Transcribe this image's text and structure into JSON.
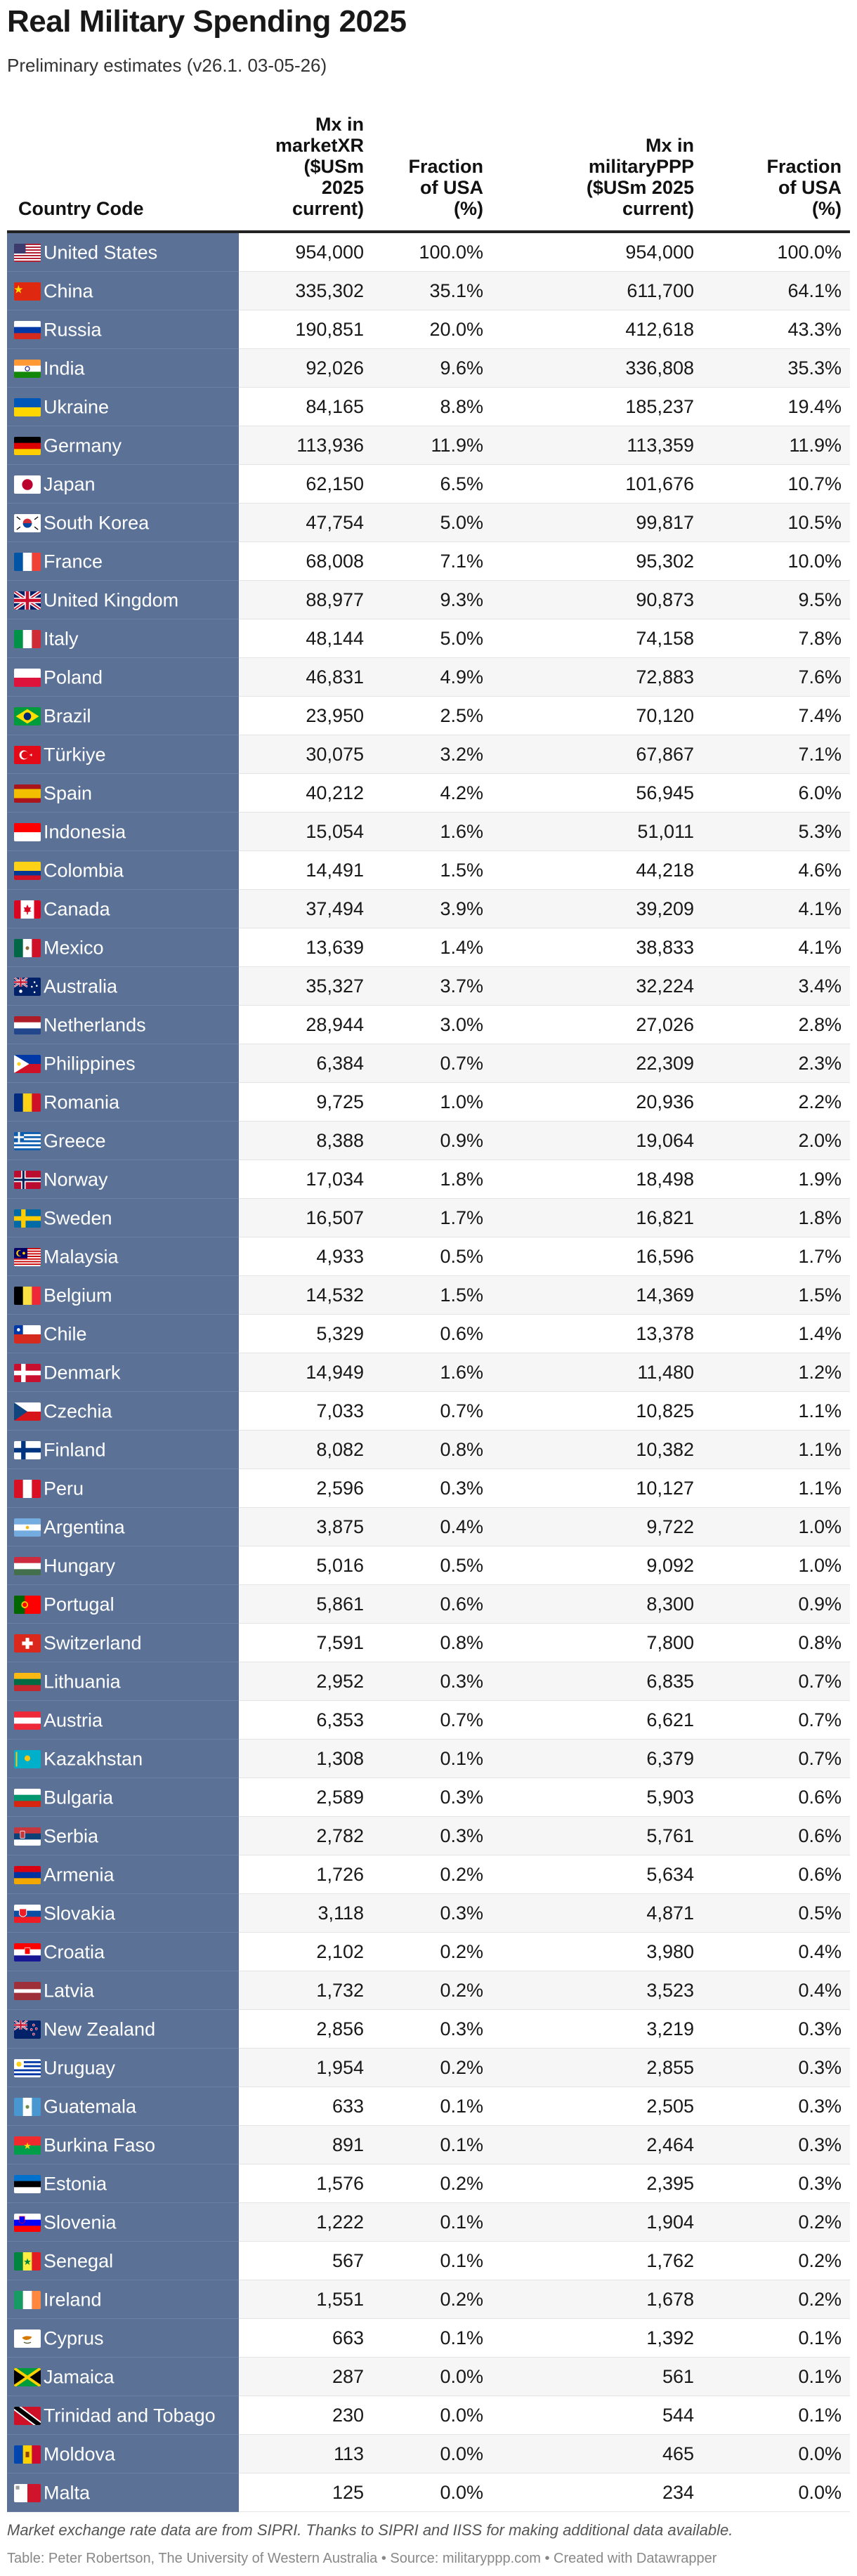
{
  "header": {
    "title": "Real Military Spending 2025",
    "subtitle": "Preliminary estimates (v26.1. 03-05-26)"
  },
  "chart_data": {
    "type": "table",
    "columns": [
      "Country Code",
      "Mx in marketXR ($USm 2025 current)",
      "Fraction of USA (%)",
      "Mx in militaryPPP ($USm 2025 current)",
      "Fraction of USA (%)"
    ],
    "rows": [
      {
        "country": "United States",
        "flag": "us",
        "mx_xr": "954,000",
        "frac_xr": "100.0%",
        "mx_ppp": "954,000",
        "frac_ppp": "100.0%"
      },
      {
        "country": "China",
        "flag": "cn",
        "mx_xr": "335,302",
        "frac_xr": "35.1%",
        "mx_ppp": "611,700",
        "frac_ppp": "64.1%"
      },
      {
        "country": "Russia",
        "flag": "ru",
        "mx_xr": "190,851",
        "frac_xr": "20.0%",
        "mx_ppp": "412,618",
        "frac_ppp": "43.3%"
      },
      {
        "country": "India",
        "flag": "in",
        "mx_xr": "92,026",
        "frac_xr": "9.6%",
        "mx_ppp": "336,808",
        "frac_ppp": "35.3%"
      },
      {
        "country": "Ukraine",
        "flag": "ua",
        "mx_xr": "84,165",
        "frac_xr": "8.8%",
        "mx_ppp": "185,237",
        "frac_ppp": "19.4%"
      },
      {
        "country": "Germany",
        "flag": "de",
        "mx_xr": "113,936",
        "frac_xr": "11.9%",
        "mx_ppp": "113,359",
        "frac_ppp": "11.9%"
      },
      {
        "country": "Japan",
        "flag": "jp",
        "mx_xr": "62,150",
        "frac_xr": "6.5%",
        "mx_ppp": "101,676",
        "frac_ppp": "10.7%"
      },
      {
        "country": "South Korea",
        "flag": "kr",
        "mx_xr": "47,754",
        "frac_xr": "5.0%",
        "mx_ppp": "99,817",
        "frac_ppp": "10.5%"
      },
      {
        "country": "France",
        "flag": "fr",
        "mx_xr": "68,008",
        "frac_xr": "7.1%",
        "mx_ppp": "95,302",
        "frac_ppp": "10.0%"
      },
      {
        "country": "United Kingdom",
        "flag": "gb",
        "mx_xr": "88,977",
        "frac_xr": "9.3%",
        "mx_ppp": "90,873",
        "frac_ppp": "9.5%"
      },
      {
        "country": "Italy",
        "flag": "it",
        "mx_xr": "48,144",
        "frac_xr": "5.0%",
        "mx_ppp": "74,158",
        "frac_ppp": "7.8%"
      },
      {
        "country": "Poland",
        "flag": "pl",
        "mx_xr": "46,831",
        "frac_xr": "4.9%",
        "mx_ppp": "72,883",
        "frac_ppp": "7.6%"
      },
      {
        "country": "Brazil",
        "flag": "br",
        "mx_xr": "23,950",
        "frac_xr": "2.5%",
        "mx_ppp": "70,120",
        "frac_ppp": "7.4%"
      },
      {
        "country": "Türkiye",
        "flag": "tr",
        "mx_xr": "30,075",
        "frac_xr": "3.2%",
        "mx_ppp": "67,867",
        "frac_ppp": "7.1%"
      },
      {
        "country": "Spain",
        "flag": "es",
        "mx_xr": "40,212",
        "frac_xr": "4.2%",
        "mx_ppp": "56,945",
        "frac_ppp": "6.0%"
      },
      {
        "country": "Indonesia",
        "flag": "id",
        "mx_xr": "15,054",
        "frac_xr": "1.6%",
        "mx_ppp": "51,011",
        "frac_ppp": "5.3%"
      },
      {
        "country": "Colombia",
        "flag": "co",
        "mx_xr": "14,491",
        "frac_xr": "1.5%",
        "mx_ppp": "44,218",
        "frac_ppp": "4.6%"
      },
      {
        "country": "Canada",
        "flag": "ca",
        "mx_xr": "37,494",
        "frac_xr": "3.9%",
        "mx_ppp": "39,209",
        "frac_ppp": "4.1%"
      },
      {
        "country": "Mexico",
        "flag": "mx",
        "mx_xr": "13,639",
        "frac_xr": "1.4%",
        "mx_ppp": "38,833",
        "frac_ppp": "4.1%"
      },
      {
        "country": "Australia",
        "flag": "au",
        "mx_xr": "35,327",
        "frac_xr": "3.7%",
        "mx_ppp": "32,224",
        "frac_ppp": "3.4%"
      },
      {
        "country": "Netherlands",
        "flag": "nl",
        "mx_xr": "28,944",
        "frac_xr": "3.0%",
        "mx_ppp": "27,026",
        "frac_ppp": "2.8%"
      },
      {
        "country": "Philippines",
        "flag": "ph",
        "mx_xr": "6,384",
        "frac_xr": "0.7%",
        "mx_ppp": "22,309",
        "frac_ppp": "2.3%"
      },
      {
        "country": "Romania",
        "flag": "ro",
        "mx_xr": "9,725",
        "frac_xr": "1.0%",
        "mx_ppp": "20,936",
        "frac_ppp": "2.2%"
      },
      {
        "country": "Greece",
        "flag": "gr",
        "mx_xr": "8,388",
        "frac_xr": "0.9%",
        "mx_ppp": "19,064",
        "frac_ppp": "2.0%"
      },
      {
        "country": "Norway",
        "flag": "no",
        "mx_xr": "17,034",
        "frac_xr": "1.8%",
        "mx_ppp": "18,498",
        "frac_ppp": "1.9%"
      },
      {
        "country": "Sweden",
        "flag": "se",
        "mx_xr": "16,507",
        "frac_xr": "1.7%",
        "mx_ppp": "16,821",
        "frac_ppp": "1.8%"
      },
      {
        "country": "Malaysia",
        "flag": "my",
        "mx_xr": "4,933",
        "frac_xr": "0.5%",
        "mx_ppp": "16,596",
        "frac_ppp": "1.7%"
      },
      {
        "country": "Belgium",
        "flag": "be",
        "mx_xr": "14,532",
        "frac_xr": "1.5%",
        "mx_ppp": "14,369",
        "frac_ppp": "1.5%"
      },
      {
        "country": "Chile",
        "flag": "cl",
        "mx_xr": "5,329",
        "frac_xr": "0.6%",
        "mx_ppp": "13,378",
        "frac_ppp": "1.4%"
      },
      {
        "country": "Denmark",
        "flag": "dk",
        "mx_xr": "14,949",
        "frac_xr": "1.6%",
        "mx_ppp": "11,480",
        "frac_ppp": "1.2%"
      },
      {
        "country": "Czechia",
        "flag": "cz",
        "mx_xr": "7,033",
        "frac_xr": "0.7%",
        "mx_ppp": "10,825",
        "frac_ppp": "1.1%"
      },
      {
        "country": "Finland",
        "flag": "fi",
        "mx_xr": "8,082",
        "frac_xr": "0.8%",
        "mx_ppp": "10,382",
        "frac_ppp": "1.1%"
      },
      {
        "country": "Peru",
        "flag": "pe",
        "mx_xr": "2,596",
        "frac_xr": "0.3%",
        "mx_ppp": "10,127",
        "frac_ppp": "1.1%"
      },
      {
        "country": "Argentina",
        "flag": "ar",
        "mx_xr": "3,875",
        "frac_xr": "0.4%",
        "mx_ppp": "9,722",
        "frac_ppp": "1.0%"
      },
      {
        "country": "Hungary",
        "flag": "hu",
        "mx_xr": "5,016",
        "frac_xr": "0.5%",
        "mx_ppp": "9,092",
        "frac_ppp": "1.0%"
      },
      {
        "country": "Portugal",
        "flag": "pt",
        "mx_xr": "5,861",
        "frac_xr": "0.6%",
        "mx_ppp": "8,300",
        "frac_ppp": "0.9%"
      },
      {
        "country": "Switzerland",
        "flag": "ch",
        "mx_xr": "7,591",
        "frac_xr": "0.8%",
        "mx_ppp": "7,800",
        "frac_ppp": "0.8%"
      },
      {
        "country": "Lithuania",
        "flag": "lt",
        "mx_xr": "2,952",
        "frac_xr": "0.3%",
        "mx_ppp": "6,835",
        "frac_ppp": "0.7%"
      },
      {
        "country": "Austria",
        "flag": "at",
        "mx_xr": "6,353",
        "frac_xr": "0.7%",
        "mx_ppp": "6,621",
        "frac_ppp": "0.7%"
      },
      {
        "country": "Kazakhstan",
        "flag": "kz",
        "mx_xr": "1,308",
        "frac_xr": "0.1%",
        "mx_ppp": "6,379",
        "frac_ppp": "0.7%"
      },
      {
        "country": "Bulgaria",
        "flag": "bg",
        "mx_xr": "2,589",
        "frac_xr": "0.3%",
        "mx_ppp": "5,903",
        "frac_ppp": "0.6%"
      },
      {
        "country": "Serbia",
        "flag": "rs",
        "mx_xr": "2,782",
        "frac_xr": "0.3%",
        "mx_ppp": "5,761",
        "frac_ppp": "0.6%"
      },
      {
        "country": "Armenia",
        "flag": "am",
        "mx_xr": "1,726",
        "frac_xr": "0.2%",
        "mx_ppp": "5,634",
        "frac_ppp": "0.6%"
      },
      {
        "country": "Slovakia",
        "flag": "sk",
        "mx_xr": "3,118",
        "frac_xr": "0.3%",
        "mx_ppp": "4,871",
        "frac_ppp": "0.5%"
      },
      {
        "country": "Croatia",
        "flag": "hr",
        "mx_xr": "2,102",
        "frac_xr": "0.2%",
        "mx_ppp": "3,980",
        "frac_ppp": "0.4%"
      },
      {
        "country": "Latvia",
        "flag": "lv",
        "mx_xr": "1,732",
        "frac_xr": "0.2%",
        "mx_ppp": "3,523",
        "frac_ppp": "0.4%"
      },
      {
        "country": "New Zealand",
        "flag": "nz",
        "mx_xr": "2,856",
        "frac_xr": "0.3%",
        "mx_ppp": "3,219",
        "frac_ppp": "0.3%"
      },
      {
        "country": "Uruguay",
        "flag": "uy",
        "mx_xr": "1,954",
        "frac_xr": "0.2%",
        "mx_ppp": "2,855",
        "frac_ppp": "0.3%"
      },
      {
        "country": "Guatemala",
        "flag": "gt",
        "mx_xr": "633",
        "frac_xr": "0.1%",
        "mx_ppp": "2,505",
        "frac_ppp": "0.3%"
      },
      {
        "country": "Burkina Faso",
        "flag": "bf",
        "mx_xr": "891",
        "frac_xr": "0.1%",
        "mx_ppp": "2,464",
        "frac_ppp": "0.3%"
      },
      {
        "country": "Estonia",
        "flag": "ee",
        "mx_xr": "1,576",
        "frac_xr": "0.2%",
        "mx_ppp": "2,395",
        "frac_ppp": "0.3%"
      },
      {
        "country": "Slovenia",
        "flag": "si",
        "mx_xr": "1,222",
        "frac_xr": "0.1%",
        "mx_ppp": "1,904",
        "frac_ppp": "0.2%"
      },
      {
        "country": "Senegal",
        "flag": "sn",
        "mx_xr": "567",
        "frac_xr": "0.1%",
        "mx_ppp": "1,762",
        "frac_ppp": "0.2%"
      },
      {
        "country": "Ireland",
        "flag": "ie",
        "mx_xr": "1,551",
        "frac_xr": "0.2%",
        "mx_ppp": "1,678",
        "frac_ppp": "0.2%"
      },
      {
        "country": "Cyprus",
        "flag": "cy",
        "mx_xr": "663",
        "frac_xr": "0.1%",
        "mx_ppp": "1,392",
        "frac_ppp": "0.1%"
      },
      {
        "country": "Jamaica",
        "flag": "jm",
        "mx_xr": "287",
        "frac_xr": "0.0%",
        "mx_ppp": "561",
        "frac_ppp": "0.1%"
      },
      {
        "country": "Trinidad and Tobago",
        "flag": "tt",
        "mx_xr": "230",
        "frac_xr": "0.0%",
        "mx_ppp": "544",
        "frac_ppp": "0.1%"
      },
      {
        "country": "Moldova",
        "flag": "md",
        "mx_xr": "113",
        "frac_xr": "0.0%",
        "mx_ppp": "465",
        "frac_ppp": "0.0%"
      },
      {
        "country": "Malta",
        "flag": "mt",
        "mx_xr": "125",
        "frac_xr": "0.0%",
        "mx_ppp": "234",
        "frac_ppp": "0.0%"
      }
    ]
  },
  "footer": {
    "notes": "Market exchange rate data are from SIPRI. Thanks to SIPRI and IISS for making additional data available.",
    "byline": "Table: Peter Robertson, The University of Western Australia • Source: militaryppp.com • Created with Datawrapper"
  },
  "colors": {
    "country_column_bg": "#5b7296",
    "header_rule": "#222222",
    "row_stripe": "#f6f6f6"
  }
}
